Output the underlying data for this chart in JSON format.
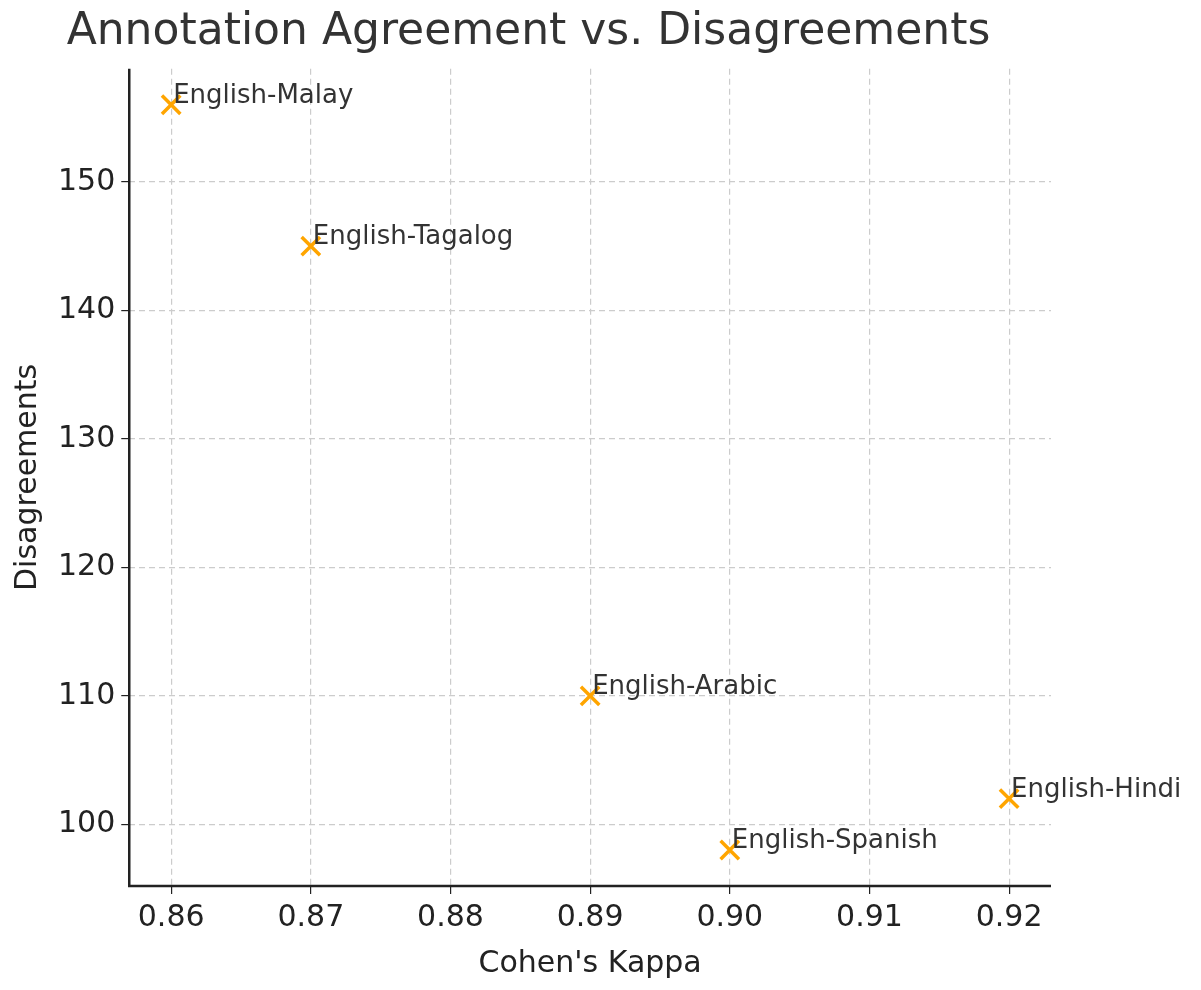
{
  "chart_data": {
    "type": "scatter",
    "title": "Annotation Agreement vs. Disagreements",
    "xlabel": "Cohen's Kappa",
    "ylabel": "Disagreements",
    "x": [
      0.86,
      0.87,
      0.89,
      0.92,
      0.9
    ],
    "series": [
      {
        "color": "#ffa500",
        "values": [
          156,
          145,
          110,
          102,
          98
        ]
      }
    ],
    "xlim": [
      0.857,
      0.923
    ],
    "xticks": [
      {
        "value": 0.86,
        "label": "0.86"
      },
      {
        "value": 0.87,
        "label": "0.87"
      },
      {
        "value": 0.88,
        "label": "0.88"
      },
      {
        "value": 0.89,
        "label": "0.89"
      },
      {
        "value": 0.9,
        "label": "0.90"
      },
      {
        "value": 0.91,
        "label": "0.91"
      },
      {
        "value": 0.92,
        "label": "0.92"
      }
    ],
    "ylim": [
      95.2,
      158.8
    ],
    "yticks": [
      100,
      110,
      120,
      130,
      140,
      150
    ],
    "annotations": [
      {
        "text": "English-Malay",
        "x": 0.86,
        "y": 156
      },
      {
        "text": "English-Tagalog",
        "x": 0.87,
        "y": 145
      },
      {
        "text": "English-Arabic",
        "x": 0.89,
        "y": 110
      },
      {
        "text": "English-Hindi",
        "x": 0.92,
        "y": 102
      },
      {
        "text": "English-Spanish",
        "x": 0.9,
        "y": 98
      }
    ],
    "grid": true,
    "marker": "cross",
    "legend": false
  }
}
